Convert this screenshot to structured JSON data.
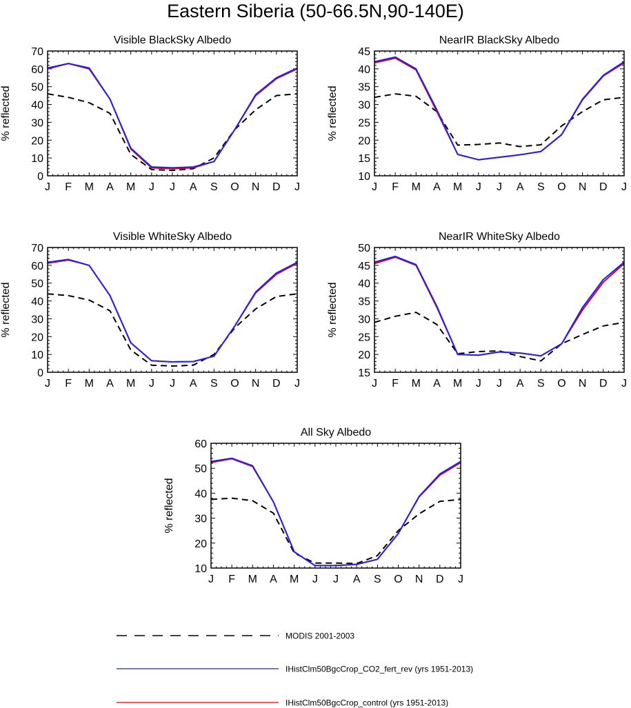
{
  "figure": {
    "title": "Eastern Siberia (50-66.5N,90-140E)"
  },
  "months": [
    "J",
    "F",
    "M",
    "A",
    "M",
    "J",
    "J",
    "A",
    "S",
    "O",
    "N",
    "D",
    "J"
  ],
  "colors": {
    "modis": "#000000",
    "co2_fert_rev": "#2222ee",
    "control": "#dd0000"
  },
  "legend": [
    {
      "key": "modis",
      "label": "MODIS 2001-2003",
      "style": "dashed"
    },
    {
      "key": "co2_fert_rev",
      "label": "IHistClm50BgcCrop_CO2_fert_rev (yrs 1951-2013)",
      "style": "solid"
    },
    {
      "key": "control",
      "label": "IHistClm50BgcCrop_control (yrs 1951-2013)",
      "style": "solid"
    }
  ],
  "chart_data": [
    {
      "type": "line",
      "title": "Visible BlackSky Albedo",
      "ylabel": "% reflected",
      "ylim": [
        0,
        70
      ],
      "yticks": [
        0,
        10,
        20,
        30,
        40,
        50,
        60,
        70
      ],
      "categories": [
        "J",
        "F",
        "M",
        "A",
        "M",
        "J",
        "J",
        "A",
        "S",
        "O",
        "N",
        "D",
        "J"
      ],
      "series": [
        {
          "key": "modis",
          "values": [
            46,
            44,
            41,
            35,
            12,
            3.5,
            3,
            4,
            10,
            26,
            37,
            45,
            46
          ]
        },
        {
          "key": "control",
          "values": [
            60,
            63,
            60,
            43,
            15,
            4.5,
            4,
            4.5,
            8,
            26,
            45,
            54.5,
            60
          ]
        },
        {
          "key": "co2_fert_rev",
          "values": [
            60.5,
            63,
            60.5,
            43,
            15.5,
            5,
            4.5,
            5,
            8,
            26,
            45.5,
            55,
            60.5
          ]
        }
      ]
    },
    {
      "type": "line",
      "title": "NearIR BlackSky Albedo",
      "ylabel": "% reflected",
      "ylim": [
        10,
        45
      ],
      "yticks": [
        10,
        15,
        20,
        25,
        30,
        35,
        40,
        45
      ],
      "categories": [
        "J",
        "F",
        "M",
        "A",
        "M",
        "J",
        "J",
        "A",
        "S",
        "O",
        "N",
        "D",
        "J"
      ],
      "series": [
        {
          "key": "modis",
          "values": [
            32,
            33,
            32.3,
            28,
            18.6,
            18.8,
            19.2,
            18.2,
            18.7,
            24,
            28,
            31.3,
            32
          ]
        },
        {
          "key": "control",
          "values": [
            41.7,
            43,
            39.7,
            28,
            16,
            14.5,
            15.2,
            15.9,
            16.8,
            21.5,
            31.3,
            38,
            41.7
          ]
        },
        {
          "key": "co2_fert_rev",
          "values": [
            42,
            43.3,
            40,
            28.5,
            16,
            14.5,
            15.2,
            15.9,
            16.8,
            21.6,
            31.5,
            38.2,
            42
          ]
        }
      ]
    },
    {
      "type": "line",
      "title": "Visible WhiteSky Albedo",
      "ylabel": "% reflected",
      "ylim": [
        0,
        70
      ],
      "yticks": [
        0,
        10,
        20,
        30,
        40,
        50,
        60,
        70
      ],
      "categories": [
        "J",
        "F",
        "M",
        "A",
        "M",
        "J",
        "J",
        "A",
        "S",
        "O",
        "N",
        "D",
        "J"
      ],
      "series": [
        {
          "key": "modis",
          "values": [
            44,
            43,
            40.5,
            34.5,
            12.5,
            4,
            3.5,
            4,
            10,
            25,
            35.5,
            42.5,
            44
          ]
        },
        {
          "key": "control",
          "values": [
            61.2,
            63,
            60,
            43,
            16.5,
            6.5,
            5.8,
            6,
            9,
            26,
            44.5,
            55,
            61.2
          ]
        },
        {
          "key": "co2_fert_rev",
          "values": [
            61.7,
            63.3,
            60,
            43,
            16.5,
            6.5,
            5.8,
            6,
            9,
            26,
            45,
            55.7,
            61.7
          ]
        }
      ]
    },
    {
      "type": "line",
      "title": "NearIR WhiteSky Albedo",
      "ylabel": "% reflected",
      "ylim": [
        15,
        50
      ],
      "yticks": [
        15,
        20,
        25,
        30,
        35,
        40,
        45,
        50
      ],
      "categories": [
        "J",
        "F",
        "M",
        "A",
        "M",
        "J",
        "J",
        "A",
        "S",
        "O",
        "N",
        "D",
        "J"
      ],
      "series": [
        {
          "key": "modis",
          "values": [
            29,
            30.7,
            31.8,
            28.4,
            20.2,
            20.8,
            21,
            19.4,
            18.2,
            23,
            25.6,
            28,
            29
          ]
        },
        {
          "key": "control",
          "values": [
            45.5,
            47.3,
            45,
            33.2,
            20,
            19.8,
            20.7,
            20.4,
            19.6,
            23,
            32.5,
            40.3,
            45.5
          ]
        },
        {
          "key": "co2_fert_rev",
          "values": [
            45.9,
            47.5,
            45.2,
            33.5,
            20,
            19.8,
            20.7,
            20.4,
            19.6,
            23,
            33.2,
            41,
            45.9
          ]
        }
      ]
    },
    {
      "type": "line",
      "title": "All Sky Albedo",
      "ylabel": "% reflected",
      "ylim": [
        10,
        60
      ],
      "yticks": [
        10,
        20,
        30,
        40,
        50,
        60
      ],
      "categories": [
        "J",
        "F",
        "M",
        "A",
        "M",
        "J",
        "J",
        "A",
        "S",
        "O",
        "N",
        "D",
        "J"
      ],
      "series": [
        {
          "key": "modis",
          "values": [
            37.5,
            38,
            37,
            32,
            16,
            12,
            12,
            11.8,
            15,
            25,
            31.7,
            36.7,
            37.5
          ]
        },
        {
          "key": "control",
          "values": [
            52.3,
            53.8,
            50.7,
            36.5,
            16.5,
            11,
            11,
            11.5,
            13.5,
            23.8,
            38.5,
            47.2,
            52.3
          ]
        },
        {
          "key": "co2_fert_rev",
          "values": [
            52.7,
            54,
            51,
            36.5,
            16.5,
            11,
            11,
            11.5,
            13.5,
            23.8,
            38.7,
            47.7,
            52.7
          ]
        }
      ]
    }
  ]
}
